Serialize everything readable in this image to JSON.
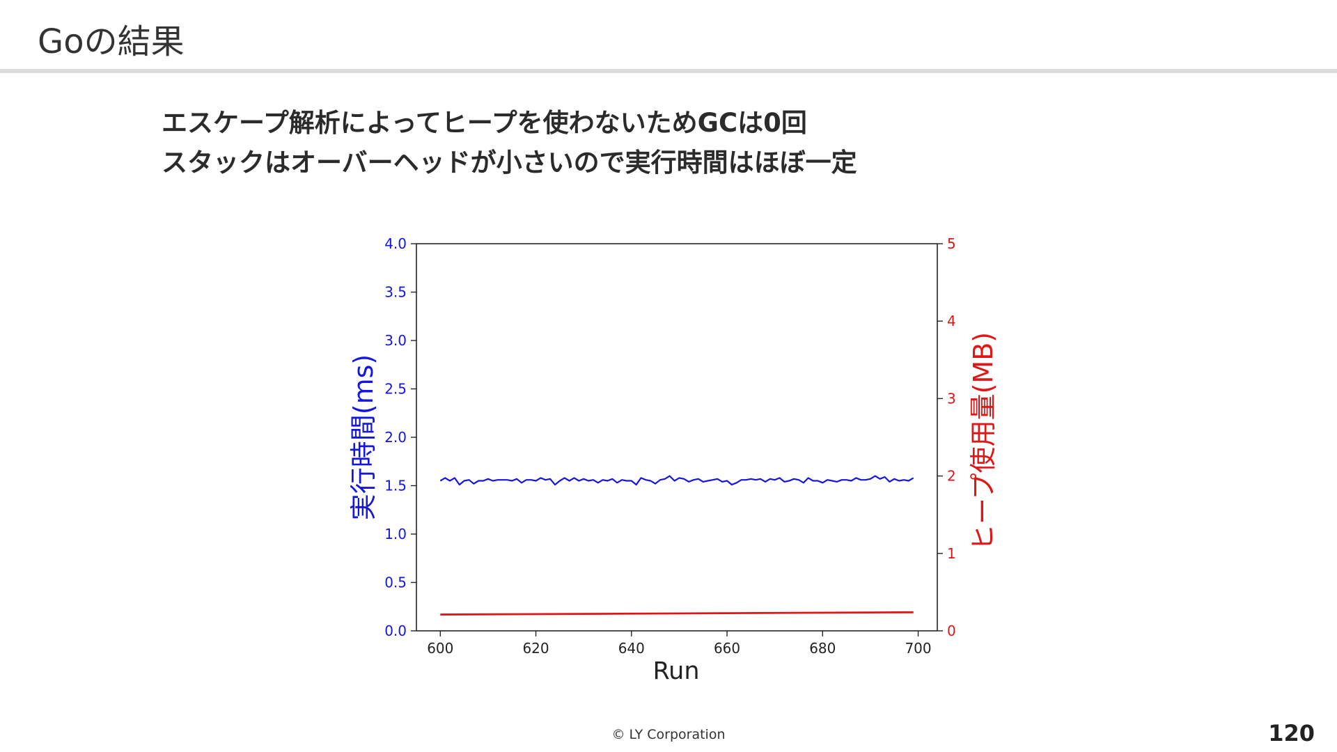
{
  "slide": {
    "title": "Goの結果",
    "lead_lines": [
      "エスケープ解析によってヒープを使わないためGCは0回",
      "スタックはオーバーヘッドが小さいので実行時間はほぼ一定"
    ],
    "footer": "© LY Corporation",
    "page_number": "120"
  },
  "chart_data": {
    "type": "line",
    "title": "",
    "xlabel": "Run",
    "ylabel_left": "実行時間(ms)",
    "ylabel_right": "ヒープ使用量(MB)",
    "xlim": [
      595,
      704
    ],
    "ylim_left": [
      0,
      4.0
    ],
    "ylim_right": [
      0,
      5
    ],
    "x_ticks": [
      600,
      620,
      640,
      660,
      680,
      700
    ],
    "y_ticks_left": [
      "0.0",
      "0.5",
      "1.0",
      "1.5",
      "2.0",
      "2.5",
      "3.0",
      "3.5",
      "4.0"
    ],
    "y_ticks_right": [
      "0",
      "1",
      "2",
      "3",
      "4",
      "5"
    ],
    "grid": false,
    "colors": {
      "left": "#1515e0",
      "right": "#e01515",
      "axis": "#222222"
    },
    "series": [
      {
        "axis": "left",
        "x": [
          600,
          601,
          602,
          603,
          604,
          605,
          606,
          607,
          608,
          609,
          610,
          611,
          612,
          613,
          614,
          615,
          616,
          617,
          618,
          619,
          620,
          621,
          622,
          623,
          624,
          625,
          626,
          627,
          628,
          629,
          630,
          631,
          632,
          633,
          634,
          635,
          636,
          637,
          638,
          639,
          640,
          641,
          642,
          643,
          644,
          645,
          646,
          647,
          648,
          649,
          650,
          651,
          652,
          653,
          654,
          655,
          656,
          657,
          658,
          659,
          660,
          661,
          662,
          663,
          664,
          665,
          666,
          667,
          668,
          669,
          670,
          671,
          672,
          673,
          674,
          675,
          676,
          677,
          678,
          679,
          680,
          681,
          682,
          683,
          684,
          685,
          686,
          687,
          688,
          689,
          690,
          691,
          692,
          693,
          694,
          695,
          696,
          697,
          698,
          699
        ],
        "values": [
          1.55,
          1.58,
          1.55,
          1.58,
          1.51,
          1.55,
          1.56,
          1.52,
          1.55,
          1.55,
          1.57,
          1.55,
          1.56,
          1.56,
          1.56,
          1.55,
          1.57,
          1.53,
          1.56,
          1.56,
          1.55,
          1.58,
          1.56,
          1.57,
          1.51,
          1.55,
          1.58,
          1.55,
          1.58,
          1.55,
          1.57,
          1.55,
          1.56,
          1.53,
          1.56,
          1.55,
          1.57,
          1.53,
          1.56,
          1.55,
          1.55,
          1.51,
          1.58,
          1.56,
          1.55,
          1.52,
          1.56,
          1.57,
          1.6,
          1.55,
          1.58,
          1.57,
          1.54,
          1.56,
          1.57,
          1.54,
          1.55,
          1.56,
          1.57,
          1.54,
          1.55,
          1.51,
          1.53,
          1.56,
          1.56,
          1.57,
          1.56,
          1.57,
          1.54,
          1.57,
          1.56,
          1.58,
          1.54,
          1.55,
          1.57,
          1.56,
          1.53,
          1.58,
          1.55,
          1.55,
          1.53,
          1.56,
          1.55,
          1.54,
          1.56,
          1.56,
          1.55,
          1.58,
          1.56,
          1.56,
          1.57,
          1.6,
          1.57,
          1.59,
          1.54,
          1.57,
          1.55,
          1.56,
          1.55,
          1.58
        ]
      },
      {
        "axis": "right",
        "x": [
          600,
          699
        ],
        "values": [
          0.21,
          0.24
        ]
      }
    ]
  }
}
